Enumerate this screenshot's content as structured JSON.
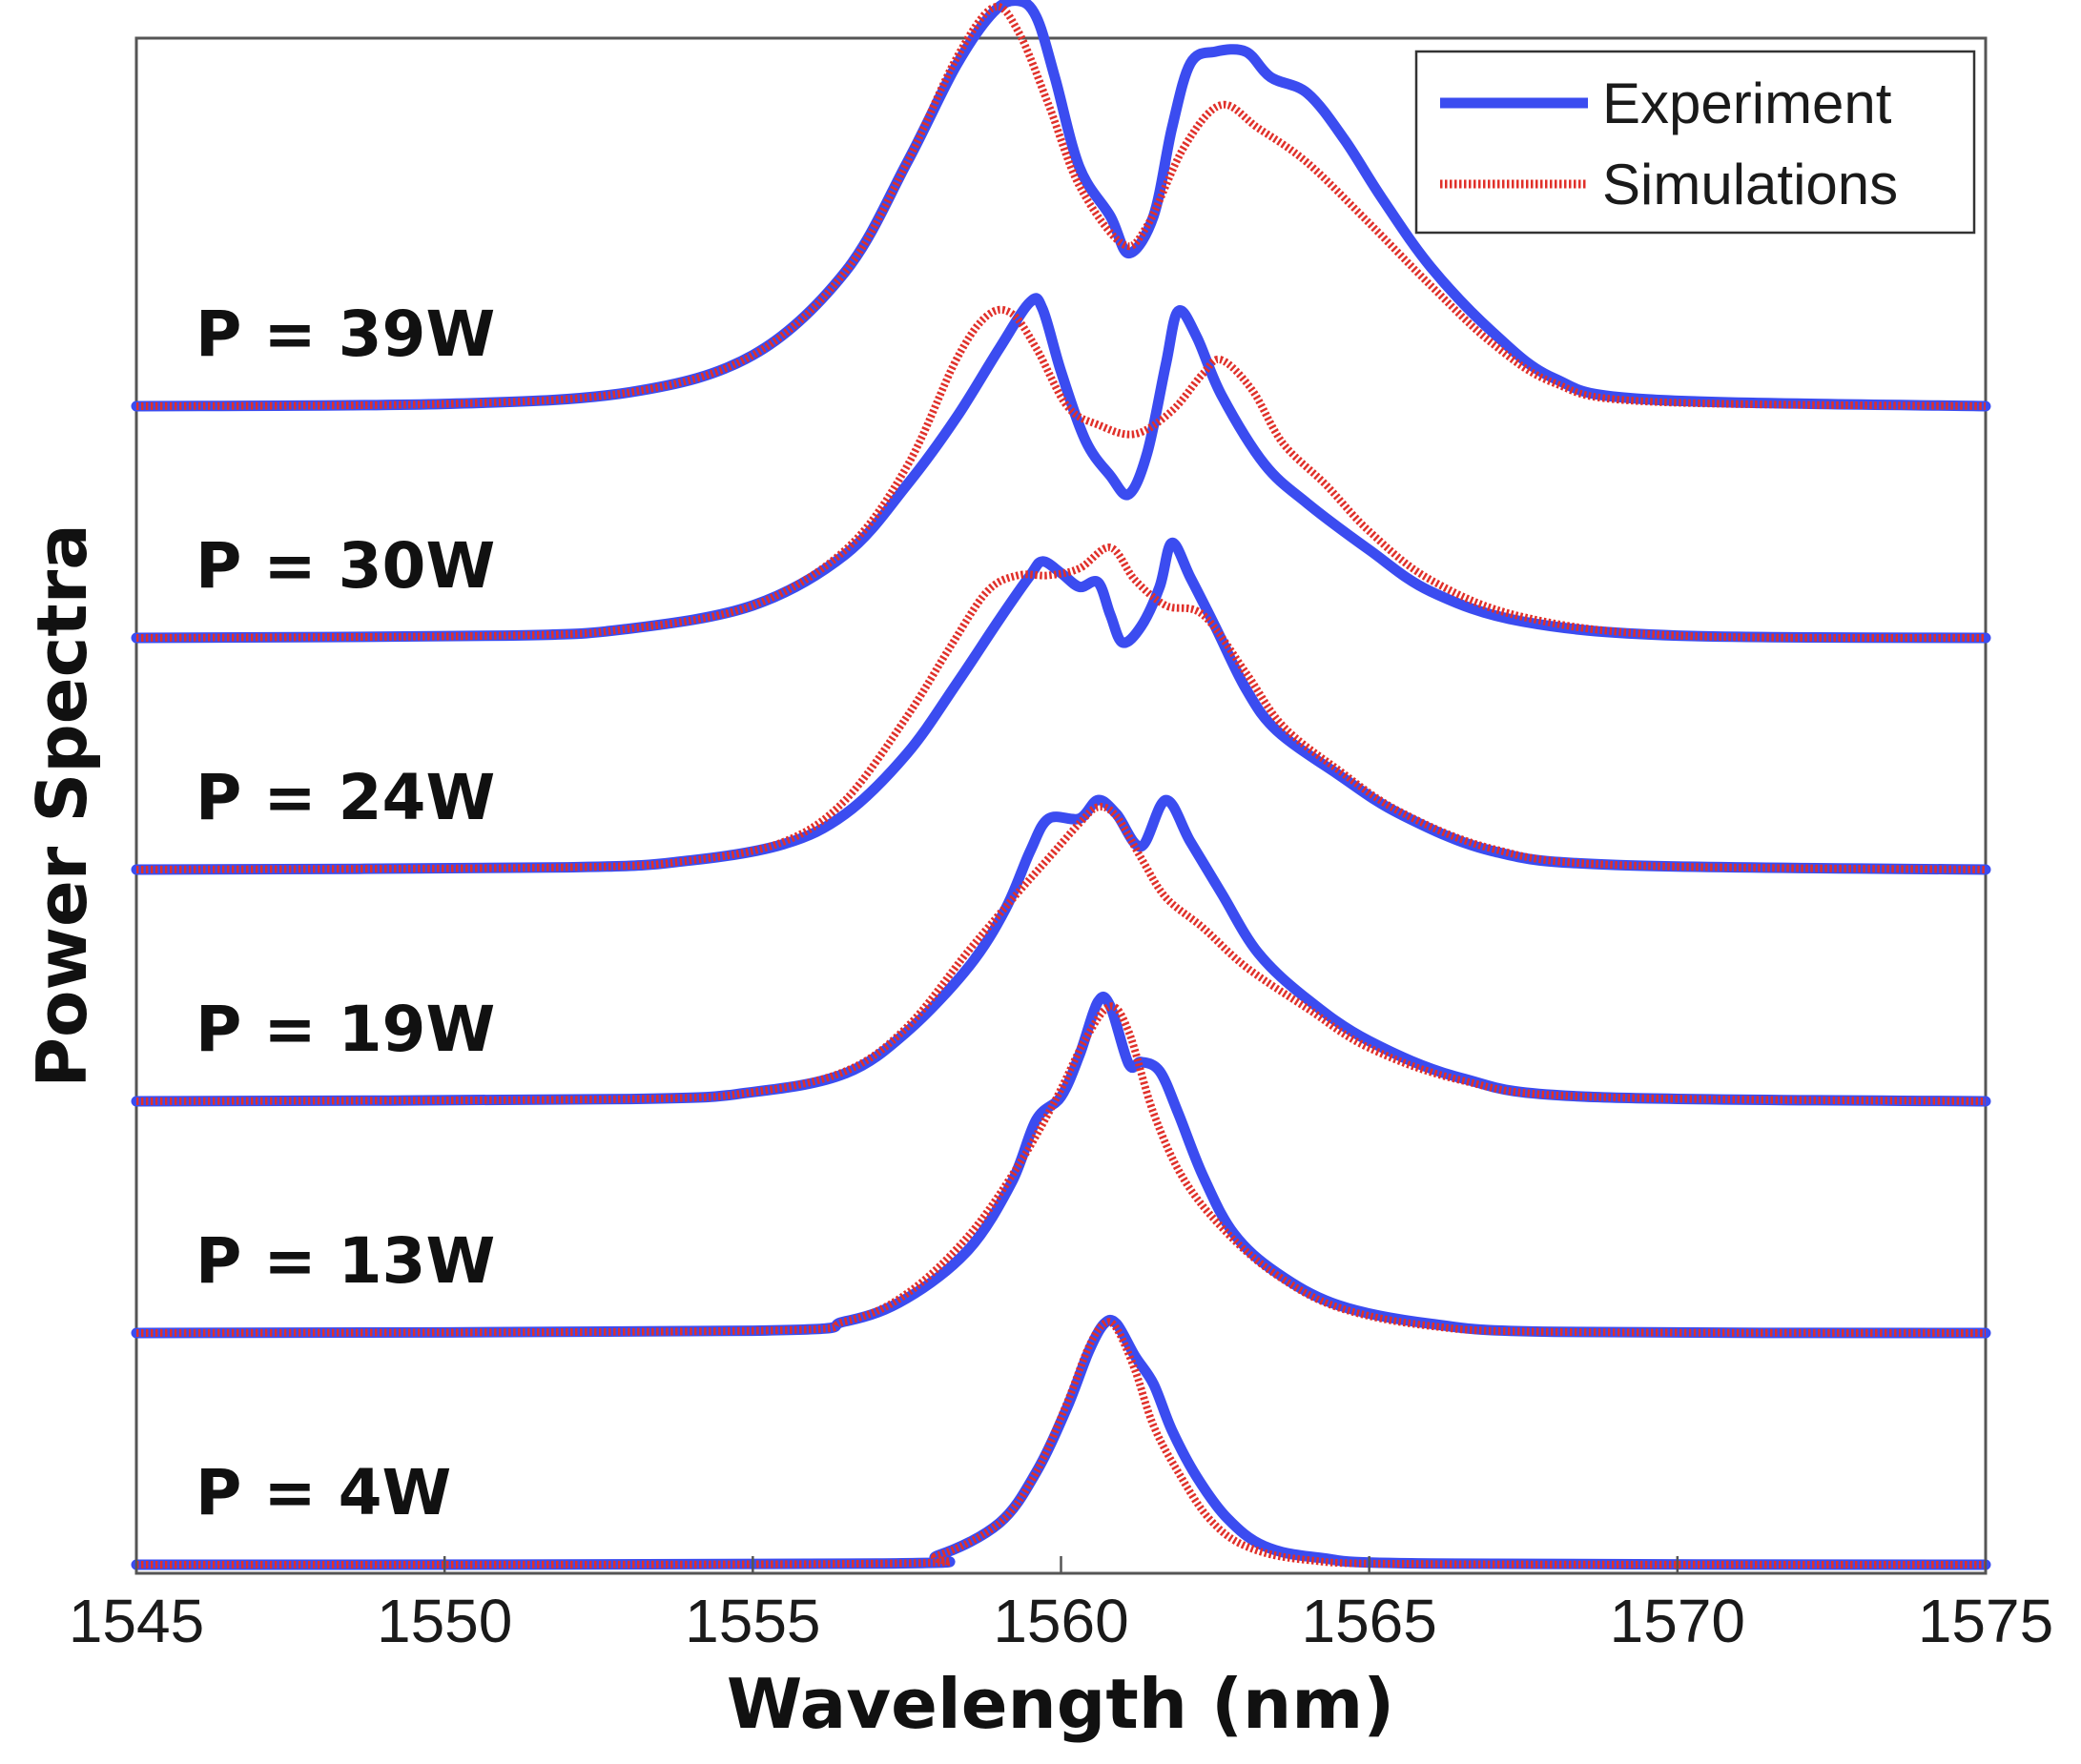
{
  "chart_data": {
    "type": "line",
    "title": "",
    "xlabel": "Wavelength (nm)",
    "ylabel": "Power Spectra",
    "xlim": [
      1545,
      1575
    ],
    "xticks": [
      1545,
      1550,
      1555,
      1560,
      1565,
      1570,
      1575
    ],
    "grid": false,
    "legend_position": "top-right",
    "legend": [
      {
        "name": "Experiment",
        "style": "solid",
        "color": "#3b4cf0"
      },
      {
        "name": "Simulations",
        "style": "dotted",
        "color": "#e0302a"
      }
    ],
    "colors": {
      "experiment": "#3b4cf0",
      "simulation": "#e0302a",
      "axis": "#444444"
    },
    "offset_step": 1.0,
    "traces": [
      {
        "label": "P = 4W",
        "experiment": [
          [
            1545,
            0
          ],
          [
            1557,
            0.005
          ],
          [
            1558,
            0.04
          ],
          [
            1559,
            0.18
          ],
          [
            1559.6,
            0.4
          ],
          [
            1560.1,
            0.68
          ],
          [
            1560.45,
            0.92
          ],
          [
            1560.7,
            1.04
          ],
          [
            1560.9,
            1.04
          ],
          [
            1561.2,
            0.9
          ],
          [
            1561.5,
            0.78
          ],
          [
            1561.8,
            0.58
          ],
          [
            1562.2,
            0.38
          ],
          [
            1562.7,
            0.2
          ],
          [
            1563.3,
            0.08
          ],
          [
            1564.2,
            0.03
          ],
          [
            1566,
            0.005
          ],
          [
            1575,
            0
          ]
        ],
        "simulation": [
          [
            1545,
            0
          ],
          [
            1557,
            0.005
          ],
          [
            1558,
            0.04
          ],
          [
            1559,
            0.18
          ],
          [
            1559.6,
            0.4
          ],
          [
            1560.1,
            0.7
          ],
          [
            1560.45,
            0.94
          ],
          [
            1560.7,
            1.04
          ],
          [
            1560.9,
            1.02
          ],
          [
            1561.2,
            0.84
          ],
          [
            1561.5,
            0.6
          ],
          [
            1561.9,
            0.4
          ],
          [
            1562.4,
            0.2
          ],
          [
            1563,
            0.08
          ],
          [
            1564,
            0.02
          ],
          [
            1566,
            0.003
          ],
          [
            1575,
            0
          ]
        ]
      },
      {
        "label": "P = 13W",
        "experiment": [
          [
            1545,
            0
          ],
          [
            1555,
            0.01
          ],
          [
            1556.5,
            0.05
          ],
          [
            1557.5,
            0.15
          ],
          [
            1558.5,
            0.36
          ],
          [
            1559.2,
            0.65
          ],
          [
            1559.6,
            0.92
          ],
          [
            1560,
            1.02
          ],
          [
            1560.3,
            1.2
          ],
          [
            1560.6,
            1.43
          ],
          [
            1560.8,
            1.41
          ],
          [
            1561.1,
            1.16
          ],
          [
            1561.3,
            1.17
          ],
          [
            1561.6,
            1.13
          ],
          [
            1561.9,
            0.95
          ],
          [
            1562.3,
            0.68
          ],
          [
            1562.8,
            0.43
          ],
          [
            1563.5,
            0.26
          ],
          [
            1564.5,
            0.12
          ],
          [
            1566,
            0.04
          ],
          [
            1568,
            0.005
          ],
          [
            1575,
            0
          ]
        ],
        "simulation": [
          [
            1545,
            0
          ],
          [
            1555,
            0.01
          ],
          [
            1556.5,
            0.05
          ],
          [
            1557.5,
            0.17
          ],
          [
            1558.5,
            0.42
          ],
          [
            1559.3,
            0.72
          ],
          [
            1559.9,
            1.0
          ],
          [
            1560.4,
            1.27
          ],
          [
            1560.8,
            1.41
          ],
          [
            1561.1,
            1.3
          ],
          [
            1561.5,
            0.95
          ],
          [
            1562,
            0.66
          ],
          [
            1562.7,
            0.43
          ],
          [
            1563.5,
            0.25
          ],
          [
            1564.5,
            0.11
          ],
          [
            1566,
            0.03
          ],
          [
            1568,
            0.005
          ],
          [
            1575,
            0
          ]
        ]
      },
      {
        "label": "P = 19W",
        "experiment": [
          [
            1545,
            0
          ],
          [
            1553,
            0.01
          ],
          [
            1555,
            0.04
          ],
          [
            1556.5,
            0.12
          ],
          [
            1557.5,
            0.3
          ],
          [
            1558.5,
            0.58
          ],
          [
            1559.1,
            0.83
          ],
          [
            1559.5,
            1.08
          ],
          [
            1559.8,
            1.22
          ],
          [
            1560.3,
            1.22
          ],
          [
            1560.6,
            1.3
          ],
          [
            1560.9,
            1.24
          ],
          [
            1561.3,
            1.1
          ],
          [
            1561.7,
            1.3
          ],
          [
            1562.1,
            1.12
          ],
          [
            1562.6,
            0.9
          ],
          [
            1563.2,
            0.64
          ],
          [
            1564,
            0.44
          ],
          [
            1565,
            0.26
          ],
          [
            1566.5,
            0.1
          ],
          [
            1568.5,
            0.02
          ],
          [
            1575,
            0
          ]
        ],
        "simulation": [
          [
            1545,
            0
          ],
          [
            1553,
            0.01
          ],
          [
            1555,
            0.04
          ],
          [
            1556.5,
            0.13
          ],
          [
            1557.5,
            0.32
          ],
          [
            1558.5,
            0.65
          ],
          [
            1559.3,
            0.9
          ],
          [
            1559.8,
            1.05
          ],
          [
            1560.3,
            1.2
          ],
          [
            1560.6,
            1.27
          ],
          [
            1560.9,
            1.23
          ],
          [
            1561.3,
            1.05
          ],
          [
            1561.7,
            0.88
          ],
          [
            1562.3,
            0.75
          ],
          [
            1563,
            0.58
          ],
          [
            1564,
            0.4
          ],
          [
            1565,
            0.23
          ],
          [
            1566.5,
            0.09
          ],
          [
            1568.5,
            0.02
          ],
          [
            1575,
            0
          ]
        ]
      },
      {
        "label": "P = 24W",
        "experiment": [
          [
            1545,
            0
          ],
          [
            1552,
            0.01
          ],
          [
            1554,
            0.04
          ],
          [
            1555.5,
            0.11
          ],
          [
            1556.5,
            0.24
          ],
          [
            1557.5,
            0.5
          ],
          [
            1558.3,
            0.8
          ],
          [
            1559,
            1.08
          ],
          [
            1559.5,
            1.27
          ],
          [
            1559.7,
            1.33
          ],
          [
            1560,
            1.28
          ],
          [
            1560.3,
            1.22
          ],
          [
            1560.6,
            1.24
          ],
          [
            1560.8,
            1.1
          ],
          [
            1561,
            0.98
          ],
          [
            1561.3,
            1.05
          ],
          [
            1561.6,
            1.22
          ],
          [
            1561.8,
            1.41
          ],
          [
            1562.1,
            1.26
          ],
          [
            1562.5,
            1.05
          ],
          [
            1563,
            0.78
          ],
          [
            1563.5,
            0.6
          ],
          [
            1564.5,
            0.41
          ],
          [
            1565.5,
            0.24
          ],
          [
            1567,
            0.08
          ],
          [
            1569,
            0.02
          ],
          [
            1575,
            0
          ]
        ],
        "simulation": [
          [
            1545,
            0
          ],
          [
            1552,
            0.01
          ],
          [
            1554,
            0.04
          ],
          [
            1555.5,
            0.12
          ],
          [
            1556.5,
            0.3
          ],
          [
            1557.5,
            0.66
          ],
          [
            1558.2,
            0.96
          ],
          [
            1558.8,
            1.2
          ],
          [
            1559.3,
            1.27
          ],
          [
            1559.8,
            1.27
          ],
          [
            1560.3,
            1.3
          ],
          [
            1560.8,
            1.39
          ],
          [
            1561.2,
            1.25
          ],
          [
            1561.7,
            1.14
          ],
          [
            1562.3,
            1.1
          ],
          [
            1563,
            0.85
          ],
          [
            1563.6,
            0.62
          ],
          [
            1564.5,
            0.43
          ],
          [
            1565.5,
            0.25
          ],
          [
            1567,
            0.09
          ],
          [
            1569,
            0.02
          ],
          [
            1575,
            0
          ]
        ]
      },
      {
        "label": "P = 30W",
        "experiment": [
          [
            1545,
            0
          ],
          [
            1551,
            0.01
          ],
          [
            1553,
            0.04
          ],
          [
            1555,
            0.14
          ],
          [
            1556.5,
            0.36
          ],
          [
            1557.5,
            0.66
          ],
          [
            1558.3,
            0.95
          ],
          [
            1559,
            1.25
          ],
          [
            1559.5,
            1.45
          ],
          [
            1559.7,
            1.42
          ],
          [
            1560,
            1.15
          ],
          [
            1560.4,
            0.85
          ],
          [
            1560.8,
            0.7
          ],
          [
            1561.1,
            0.62
          ],
          [
            1561.4,
            0.8
          ],
          [
            1561.7,
            1.18
          ],
          [
            1561.9,
            1.41
          ],
          [
            1562.2,
            1.3
          ],
          [
            1562.6,
            1.05
          ],
          [
            1563.3,
            0.75
          ],
          [
            1564,
            0.58
          ],
          [
            1565,
            0.38
          ],
          [
            1566,
            0.2
          ],
          [
            1567.5,
            0.07
          ],
          [
            1570,
            0.01
          ],
          [
            1575,
            0
          ]
        ],
        "simulation": [
          [
            1545,
            0
          ],
          [
            1551,
            0.01
          ],
          [
            1553,
            0.04
          ],
          [
            1555,
            0.14
          ],
          [
            1556.5,
            0.38
          ],
          [
            1557.5,
            0.74
          ],
          [
            1558.3,
            1.2
          ],
          [
            1558.8,
            1.39
          ],
          [
            1559.2,
            1.4
          ],
          [
            1559.6,
            1.25
          ],
          [
            1560.1,
            1.0
          ],
          [
            1560.6,
            0.92
          ],
          [
            1561.2,
            0.88
          ],
          [
            1561.8,
            0.98
          ],
          [
            1562.3,
            1.14
          ],
          [
            1562.6,
            1.2
          ],
          [
            1563.1,
            1.07
          ],
          [
            1563.6,
            0.84
          ],
          [
            1564.3,
            0.66
          ],
          [
            1565,
            0.46
          ],
          [
            1566,
            0.25
          ],
          [
            1567.5,
            0.09
          ],
          [
            1570,
            0.01
          ],
          [
            1575,
            0
          ]
        ]
      },
      {
        "label": "P = 39W",
        "experiment": [
          [
            1545,
            0
          ],
          [
            1550,
            0.01
          ],
          [
            1553,
            0.06
          ],
          [
            1555,
            0.22
          ],
          [
            1556.5,
            0.58
          ],
          [
            1557.5,
            1.05
          ],
          [
            1558.3,
            1.47
          ],
          [
            1558.9,
            1.7
          ],
          [
            1559.3,
            1.75
          ],
          [
            1559.6,
            1.68
          ],
          [
            1559.9,
            1.42
          ],
          [
            1560.3,
            1.03
          ],
          [
            1560.8,
            0.82
          ],
          [
            1561.1,
            0.66
          ],
          [
            1561.5,
            0.82
          ],
          [
            1561.8,
            1.2
          ],
          [
            1562.1,
            1.48
          ],
          [
            1562.5,
            1.53
          ],
          [
            1563,
            1.53
          ],
          [
            1563.4,
            1.42
          ],
          [
            1564,
            1.35
          ],
          [
            1564.6,
            1.15
          ],
          [
            1565.2,
            0.9
          ],
          [
            1566,
            0.6
          ],
          [
            1567,
            0.32
          ],
          [
            1568,
            0.12
          ],
          [
            1569.5,
            0.03
          ],
          [
            1575,
            0
          ]
        ],
        "simulation": [
          [
            1545,
            0
          ],
          [
            1550,
            0.01
          ],
          [
            1553,
            0.06
          ],
          [
            1555,
            0.22
          ],
          [
            1556.5,
            0.58
          ],
          [
            1557.5,
            1.05
          ],
          [
            1558.3,
            1.5
          ],
          [
            1558.9,
            1.72
          ],
          [
            1559.3,
            1.62
          ],
          [
            1559.8,
            1.3
          ],
          [
            1560.3,
            0.95
          ],
          [
            1561,
            0.7
          ],
          [
            1561.4,
            0.78
          ],
          [
            1562,
            1.12
          ],
          [
            1562.6,
            1.3
          ],
          [
            1563.2,
            1.2
          ],
          [
            1564,
            1.05
          ],
          [
            1565,
            0.79
          ],
          [
            1566,
            0.52
          ],
          [
            1567,
            0.27
          ],
          [
            1568,
            0.1
          ],
          [
            1569.5,
            0.02
          ],
          [
            1575,
            0
          ]
        ]
      }
    ]
  }
}
